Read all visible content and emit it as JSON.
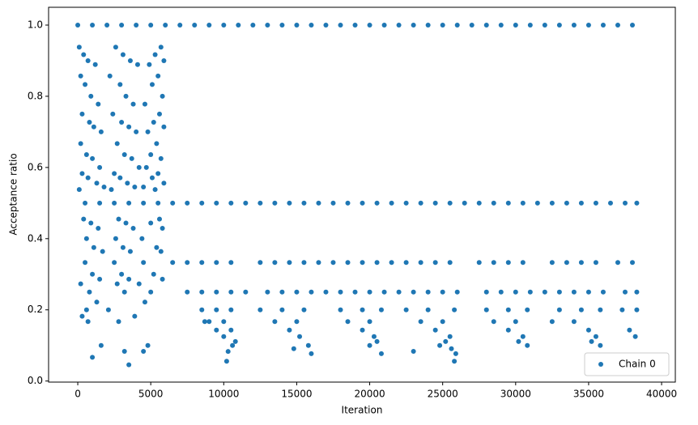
{
  "chart_data": {
    "type": "scatter",
    "xlabel": "Iteration",
    "ylabel": "Acceptance ratio",
    "xlim": [
      -2000,
      40940
    ],
    "ylim": [
      -0.003,
      1.05
    ],
    "xticks": [
      0,
      5000,
      10000,
      15000,
      20000,
      25000,
      30000,
      35000,
      40000
    ],
    "yticks": [
      {
        "value": 0,
        "label": "0.0"
      },
      0.2,
      0.4,
      0.6,
      0.8,
      {
        "value": 1,
        "label": "1.0"
      }
    ],
    "legend": "lower right",
    "series": [
      {
        "name": "Chain 0",
        "color": "#1f77b4",
        "x": [
          0,
          1000,
          2000,
          3000,
          4000,
          5000,
          6000,
          7000,
          8000,
          9000,
          10000,
          11000,
          12000,
          13000,
          14000,
          15000,
          16000,
          17000,
          18000,
          19000,
          20000,
          21000,
          22000,
          23000,
          24000,
          25000,
          26000,
          27000,
          28000,
          29000,
          30000,
          31000,
          32000,
          33000,
          34000,
          35000,
          36000,
          37000,
          38000,
          500,
          1500,
          2500,
          3500,
          4500,
          5500,
          6500,
          7500,
          8500,
          9500,
          10500,
          11500,
          12500,
          13500,
          14500,
          15500,
          16500,
          17500,
          18500,
          19500,
          20500,
          21500,
          22500,
          23500,
          24500,
          25500,
          26500,
          27500,
          28500,
          29500,
          30500,
          31500,
          32500,
          33500,
          34500,
          35500,
          36500,
          37500,
          38300,
          6500,
          7500,
          8500,
          9500,
          10500,
          12500,
          13500,
          14500,
          15500,
          16500,
          17500,
          18500,
          19500,
          20500,
          21500,
          22500,
          23500,
          24500,
          25500,
          27500,
          28500,
          29500,
          30500,
          32500,
          33500,
          34500,
          35500,
          37000,
          38000,
          7500,
          8500,
          9500,
          10500,
          11500,
          13000,
          14000,
          15000,
          16000,
          17000,
          18000,
          19000,
          20000,
          21000,
          22000,
          23000,
          24000,
          25000,
          26000,
          28000,
          29000,
          30000,
          31000,
          32000,
          33000,
          34000,
          35000,
          36000,
          37500,
          38300,
          8500,
          9500,
          10500,
          9000,
          10000,
          9500,
          10500,
          10000,
          10800,
          10600,
          8700,
          10300,
          10200,
          12500,
          14000,
          15500,
          13500,
          15000,
          14500,
          15200,
          15800,
          14800,
          16000,
          18000,
          19500,
          20800,
          18500,
          20000,
          19500,
          20300,
          20500,
          20000,
          20800,
          22500,
          24000,
          25800,
          23500,
          25000,
          24500,
          25500,
          25200,
          24800,
          25600,
          25900,
          25800,
          23000,
          28000,
          29500,
          30800,
          28500,
          30000,
          29500,
          30500,
          30800,
          30200,
          33000,
          34500,
          35800,
          32500,
          34000,
          35000,
          35500,
          35200,
          35800,
          37300,
          38300,
          37800,
          38200,
          100,
          2600,
          5700,
          400,
          3100,
          5300,
          700,
          3600,
          5900,
          1200,
          4100,
          4900,
          200,
          2200,
          5500,
          500,
          2900,
          5100,
          900,
          3300,
          5800,
          1400,
          3800,
          4600,
          300,
          2400,
          5600,
          800,
          3000,
          5200,
          1100,
          3500,
          5900,
          1600,
          4000,
          4800,
          200,
          2700,
          5400,
          600,
          3200,
          5000,
          1000,
          3700,
          5700,
          1500,
          4200,
          4700,
          300,
          2500,
          5500,
          700,
          2900,
          5100,
          1300,
          3400,
          5900,
          1800,
          3900,
          4500,
          100,
          2300,
          5300,
          400,
          2800,
          5600,
          900,
          3300,
          5000,
          1400,
          3800,
          5800,
          600,
          2600,
          4400,
          1100,
          3100,
          5400,
          1700,
          3600,
          5700,
          500,
          2500,
          4500,
          1000,
          3000,
          5200,
          1500,
          3500,
          5800,
          200,
          2700,
          4200,
          800,
          3200,
          5000,
          1300,
          4600,
          600,
          2100,
          300,
          3900,
          700,
          2800,
          1600,
          4800,
          3200,
          4500,
          1000,
          3500
        ],
        "values": [
          1,
          1,
          1,
          1,
          1,
          1,
          1,
          1,
          1,
          1,
          1,
          1,
          1,
          1,
          1,
          1,
          1,
          1,
          1,
          1,
          1,
          1,
          1,
          1,
          1,
          1,
          1,
          1,
          1,
          1,
          1,
          1,
          1,
          1,
          1,
          1,
          1,
          1,
          1,
          0.5,
          0.5,
          0.5,
          0.5,
          0.5,
          0.5,
          0.5,
          0.5,
          0.5,
          0.5,
          0.5,
          0.5,
          0.5,
          0.5,
          0.5,
          0.5,
          0.5,
          0.5,
          0.5,
          0.5,
          0.5,
          0.5,
          0.5,
          0.5,
          0.5,
          0.5,
          0.5,
          0.5,
          0.5,
          0.5,
          0.5,
          0.5,
          0.5,
          0.5,
          0.5,
          0.5,
          0.5,
          0.5,
          0.5,
          0.333,
          0.333,
          0.333,
          0.333,
          0.333,
          0.333,
          0.333,
          0.333,
          0.333,
          0.333,
          0.333,
          0.333,
          0.333,
          0.333,
          0.333,
          0.333,
          0.333,
          0.333,
          0.333,
          0.333,
          0.333,
          0.333,
          0.333,
          0.333,
          0.333,
          0.333,
          0.333,
          0.333,
          0.333,
          0.25,
          0.25,
          0.25,
          0.25,
          0.25,
          0.25,
          0.25,
          0.25,
          0.25,
          0.25,
          0.25,
          0.25,
          0.25,
          0.25,
          0.25,
          0.25,
          0.25,
          0.25,
          0.25,
          0.25,
          0.25,
          0.25,
          0.25,
          0.25,
          0.25,
          0.25,
          0.25,
          0.25,
          0.25,
          0.25,
          0.2,
          0.2,
          0.2,
          0.167,
          0.167,
          0.143,
          0.143,
          0.125,
          0.111,
          0.1,
          0.167,
          0.083,
          0.0556,
          0.2,
          0.2,
          0.2,
          0.167,
          0.167,
          0.143,
          0.125,
          0.1,
          0.0909,
          0.077,
          0.2,
          0.2,
          0.2,
          0.167,
          0.167,
          0.143,
          0.125,
          0.111,
          0.1,
          0.077,
          0.2,
          0.2,
          0.2,
          0.167,
          0.167,
          0.143,
          0.125,
          0.111,
          0.1,
          0.0909,
          0.0769,
          0.0556,
          0.0833,
          0.2,
          0.2,
          0.2,
          0.167,
          0.167,
          0.143,
          0.125,
          0.1,
          0.111,
          0.2,
          0.2,
          0.2,
          0.167,
          0.167,
          0.143,
          0.125,
          0.111,
          0.1,
          0.2,
          0.2,
          0.143,
          0.125,
          0.938,
          0.938,
          0.938,
          0.917,
          0.917,
          0.917,
          0.9,
          0.9,
          0.9,
          0.889,
          0.889,
          0.889,
          0.857,
          0.857,
          0.857,
          0.833,
          0.833,
          0.833,
          0.8,
          0.8,
          0.8,
          0.778,
          0.778,
          0.778,
          0.75,
          0.75,
          0.75,
          0.727,
          0.727,
          0.727,
          0.714,
          0.714,
          0.714,
          0.7,
          0.7,
          0.7,
          0.667,
          0.667,
          0.667,
          0.636,
          0.636,
          0.636,
          0.625,
          0.625,
          0.625,
          0.6,
          0.6,
          0.6,
          0.583,
          0.583,
          0.583,
          0.571,
          0.571,
          0.571,
          0.556,
          0.556,
          0.556,
          0.545,
          0.545,
          0.545,
          0.538,
          0.538,
          0.538,
          0.455,
          0.455,
          0.455,
          0.444,
          0.444,
          0.444,
          0.429,
          0.429,
          0.429,
          0.4,
          0.4,
          0.4,
          0.375,
          0.375,
          0.375,
          0.364,
          0.364,
          0.364,
          0.333,
          0.333,
          0.333,
          0.3,
          0.3,
          0.3,
          0.286,
          0.286,
          0.286,
          0.273,
          0.273,
          0.273,
          0.25,
          0.25,
          0.25,
          0.222,
          0.222,
          0.2,
          0.2,
          0.182,
          0.182,
          0.167,
          0.167,
          0.1,
          0.1,
          0.0833,
          0.0833,
          0.0667,
          0.0455
        ]
      }
    ]
  }
}
